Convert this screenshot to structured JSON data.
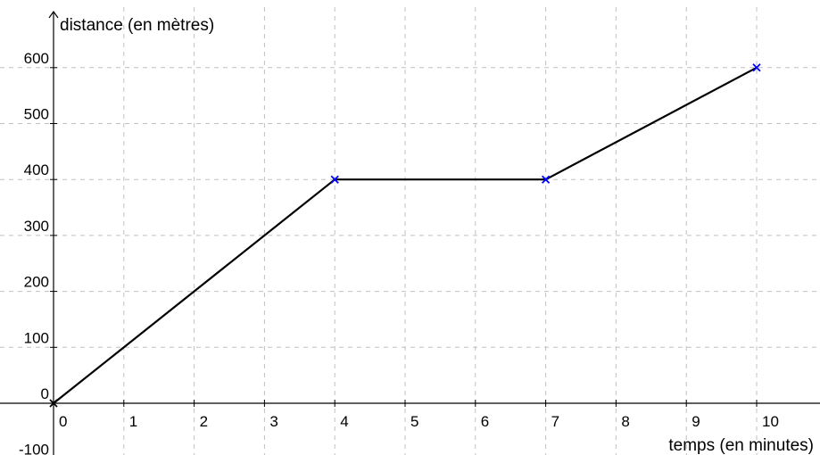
{
  "chart_data": {
    "type": "line",
    "title": "",
    "xlabel": "temps (en minutes)",
    "ylabel": "distance (en mètres)",
    "xlim": [
      -0.6,
      10.8
    ],
    "ylim": [
      -110,
      680
    ],
    "x_ticks": [
      0,
      1,
      2,
      3,
      4,
      5,
      6,
      7,
      8,
      9,
      10
    ],
    "y_ticks": [
      -100,
      0,
      100,
      200,
      300,
      400,
      500,
      600
    ],
    "x_tick_labels": [
      "0",
      "1",
      "2",
      "3",
      "4",
      "5",
      "6",
      "7",
      "8",
      "9",
      "10"
    ],
    "y_tick_labels": [
      "-100",
      "0",
      "100",
      "200",
      "300",
      "400",
      "500",
      "600"
    ],
    "grid": true,
    "series": [
      {
        "x": [
          0,
          4,
          7,
          10
        ],
        "y": [
          0,
          400,
          400,
          600
        ],
        "color": "#000000"
      }
    ],
    "marked_points": [
      {
        "x": 0,
        "y": 0,
        "color": "#000000"
      },
      {
        "x": 4,
        "y": 400,
        "color": "#0000ff"
      },
      {
        "x": 7,
        "y": 400,
        "color": "#0000ff"
      },
      {
        "x": 10,
        "y": 600,
        "color": "#0000ff"
      }
    ]
  }
}
